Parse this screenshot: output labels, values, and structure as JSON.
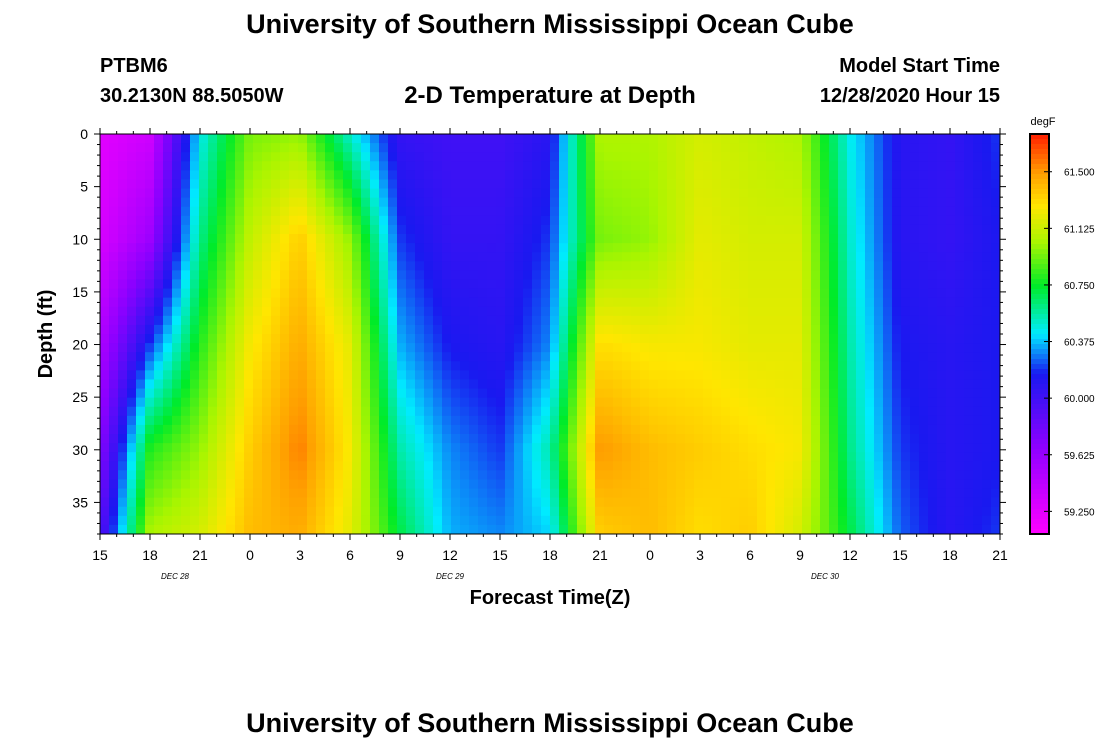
{
  "header": {
    "title": "University of Southern Mississippi Ocean Cube",
    "station_id": "PTBM6",
    "station_coords": "30.2130N 88.5050W",
    "plot_title": "2-D Temperature at Depth",
    "model_start_label": "Model Start Time",
    "model_start_value": "12/28/2020 Hour 15"
  },
  "footer": {
    "title": "University of Southern Mississippi Ocean Cube"
  },
  "chart_data": {
    "type": "heatmap",
    "xlabel": "Forecast Time(Z)",
    "ylabel": "Depth (ft)",
    "x_tick_labels": [
      "15",
      "18",
      "21",
      "0",
      "3",
      "6",
      "9",
      "12",
      "15",
      "18",
      "21",
      "0",
      "3",
      "6",
      "9",
      "12",
      "15",
      "18",
      "21"
    ],
    "date_labels": [
      {
        "label": "DEC 28",
        "at_tick": 1.5
      },
      {
        "label": "DEC 29",
        "at_tick": 7
      },
      {
        "label": "DEC 30",
        "at_tick": 14.5
      }
    ],
    "y_tick_labels": [
      "0",
      "5",
      "10",
      "15",
      "20",
      "25",
      "30",
      "35"
    ],
    "ylim": [
      0,
      38
    ],
    "y_inverted": true,
    "colorbar": {
      "unit": "degF",
      "min": 59.1,
      "max": 61.75,
      "tick_values": [
        61.5,
        61.125,
        60.75,
        60.375,
        60.0,
        59.625,
        59.25
      ],
      "tick_labels": [
        "61.500",
        "61.125",
        "60.750",
        "60.375",
        "60.000",
        "59.625",
        "59.250"
      ],
      "colormap": "rainbow magenta-purple-blue-cyan-green-yellow-orange-red"
    },
    "depth_levels_ft": [
      0,
      10,
      20,
      30,
      38
    ],
    "time_hours": [
      0,
      3,
      6,
      9,
      12,
      15,
      18,
      21,
      24,
      27,
      30,
      33,
      36,
      39,
      42,
      45,
      48,
      51,
      54
    ],
    "temperature_degF": [
      [
        59.25,
        59.3,
        59.5,
        59.7,
        59.9
      ],
      [
        59.35,
        59.6,
        60.2,
        60.8,
        61.05
      ],
      [
        60.45,
        60.6,
        60.8,
        61.0,
        61.15
      ],
      [
        60.95,
        61.1,
        61.25,
        61.35,
        61.4
      ],
      [
        61.0,
        61.35,
        61.45,
        61.55,
        61.45
      ],
      [
        60.5,
        61.0,
        61.2,
        61.25,
        61.2
      ],
      [
        60.05,
        60.2,
        60.35,
        60.55,
        60.7
      ],
      [
        60.0,
        60.05,
        60.15,
        60.3,
        60.35
      ],
      [
        60.0,
        60.05,
        60.1,
        60.2,
        60.3
      ],
      [
        60.1,
        60.2,
        60.3,
        60.55,
        60.4
      ],
      [
        61.05,
        60.95,
        61.3,
        61.5,
        61.35
      ],
      [
        61.05,
        61.0,
        61.25,
        61.4,
        61.4
      ],
      [
        61.15,
        61.2,
        61.25,
        61.35,
        61.3
      ],
      [
        61.1,
        61.15,
        61.2,
        61.3,
        61.35
      ],
      [
        61.05,
        61.15,
        61.2,
        61.25,
        61.15
      ],
      [
        60.45,
        60.5,
        60.55,
        60.6,
        60.7
      ],
      [
        60.1,
        60.1,
        60.15,
        60.2,
        60.25
      ],
      [
        60.05,
        60.05,
        60.1,
        60.1,
        60.1
      ],
      [
        60.2,
        60.15,
        60.15,
        60.15,
        60.2
      ]
    ]
  }
}
